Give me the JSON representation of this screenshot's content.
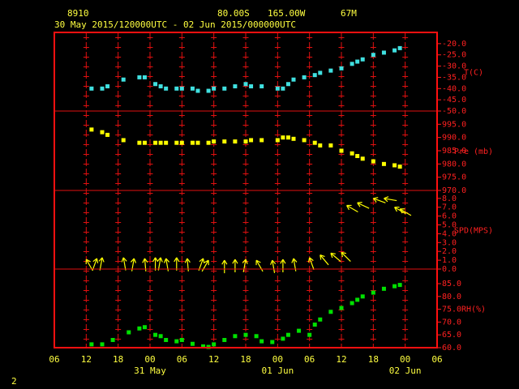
{
  "header": {
    "station": "8910",
    "lat": "80.00S",
    "lon": "165.00W",
    "elev": "67M",
    "period": "30 May 2015/120000UTC - 02 Jun 2015/000000UTC",
    "page": "2"
  },
  "chart_data": [
    {
      "type": "scatter",
      "ylabel": "T(C)",
      "color": "#40e0e0",
      "x": [
        7,
        9,
        10,
        13,
        16,
        17,
        19,
        20,
        21,
        23,
        24,
        26,
        27,
        29,
        30,
        32,
        34,
        36,
        37,
        39,
        42,
        43,
        44,
        45,
        47,
        49,
        50,
        52,
        54,
        56,
        57,
        58,
        60,
        62,
        64,
        65
      ],
      "values": [
        -40,
        -40,
        -39,
        -36,
        -35,
        -35,
        -38,
        -39,
        -40,
        -40,
        -40,
        -40,
        -41,
        -41,
        -40,
        -40,
        -39,
        -38,
        -39,
        -39,
        -40,
        -40,
        -38,
        -36,
        -35,
        -34,
        -33,
        -32,
        -31,
        -29,
        -28,
        -27,
        -25,
        -24,
        -23,
        -22
      ],
      "xlim": [
        0,
        72
      ],
      "ylim": [
        -50,
        -15
      ],
      "yticks": [
        {
          "value": -20,
          "label": "-20.0"
        },
        {
          "value": -25,
          "label": "-25.0"
        },
        {
          "value": -30,
          "label": "-30.0"
        },
        {
          "value": -35,
          "label": "-35.0"
        },
        {
          "value": -40,
          "label": "-40.0"
        },
        {
          "value": -45,
          "label": "-45.0"
        },
        {
          "value": -50,
          "label": "-50.0"
        }
      ]
    },
    {
      "type": "scatter",
      "ylabel": "Pre (mb)",
      "color": "#ffff00",
      "x": [
        7,
        9,
        10,
        13,
        16,
        17,
        19,
        20,
        21,
        23,
        24,
        26,
        27,
        29,
        30,
        32,
        34,
        36,
        37,
        39,
        42,
        43,
        44,
        45,
        47,
        49,
        50,
        52,
        54,
        56,
        57,
        58,
        60,
        62,
        64,
        65
      ],
      "values": [
        993,
        992,
        991,
        989,
        988,
        988,
        988,
        988,
        988,
        988,
        988,
        988,
        988,
        988,
        988.5,
        988.5,
        988.5,
        988.5,
        989,
        989,
        989,
        990,
        990,
        989.5,
        989,
        988,
        987,
        987,
        985,
        984,
        983,
        982,
        981,
        980,
        979.5,
        979
      ],
      "xlim": [
        0,
        72
      ],
      "ylim": [
        970,
        1000
      ],
      "yticks": [
        {
          "value": 995,
          "label": "995.0"
        },
        {
          "value": 990,
          "label": "990.0"
        },
        {
          "value": 985,
          "label": "985.0"
        },
        {
          "value": 980,
          "label": "980.0"
        },
        {
          "value": 975,
          "label": "975.0"
        },
        {
          "value": 970,
          "label": "970.0"
        }
      ]
    },
    {
      "type": "wind",
      "ylabel": "SPD(MPS)",
      "color": "#ffff00",
      "x": [
        6,
        8,
        9,
        13,
        15,
        17,
        19,
        20,
        21,
        23,
        25,
        28,
        29,
        32,
        34,
        36,
        38,
        41,
        43,
        45,
        48,
        50,
        52,
        54,
        55,
        57,
        60,
        62,
        64,
        65
      ],
      "values": [
        1.1,
        1.2,
        1.3,
        1.3,
        1.2,
        1.2,
        1.3,
        1.3,
        1.2,
        1.3,
        1.2,
        1.2,
        1.0,
        1.0,
        1.1,
        1.1,
        1.0,
        1.0,
        1.1,
        1.2,
        1.3,
        1.6,
        1.8,
        1.9,
        7.2,
        7.5,
        8.0,
        8.0,
        7.0,
        6.8
      ],
      "directions": [
        120,
        70,
        80,
        100,
        80,
        95,
        90,
        80,
        100,
        90,
        95,
        70,
        60,
        90,
        90,
        80,
        120,
        100,
        90,
        100,
        110,
        130,
        140,
        135,
        150,
        155,
        160,
        170,
        150,
        150
      ],
      "xlim": [
        0,
        72
      ],
      "ylim": [
        0,
        8.9
      ],
      "yticks": [
        {
          "value": 8,
          "label": "8.0"
        },
        {
          "value": 7,
          "label": "7.0"
        },
        {
          "value": 6,
          "label": "6.0"
        },
        {
          "value": 5,
          "label": "5.0"
        },
        {
          "value": 4,
          "label": "4.0"
        },
        {
          "value": 3,
          "label": "3.0"
        },
        {
          "value": 2,
          "label": "2.0"
        },
        {
          "value": 1,
          "label": "1.0"
        },
        {
          "value": 0,
          "label": "0.0"
        }
      ]
    },
    {
      "type": "scatter",
      "ylabel": "RH(%)",
      "color": "#00e000",
      "x": [
        7,
        9,
        11,
        14,
        16,
        17,
        19,
        20,
        21,
        23,
        24,
        26,
        28,
        29,
        30,
        32,
        34,
        36,
        38,
        39,
        41,
        43,
        44,
        46,
        48,
        49,
        50,
        52,
        54,
        56,
        57,
        58,
        60,
        62,
        64,
        65
      ],
      "values": [
        61.3,
        61.3,
        63,
        66,
        67.5,
        68,
        65,
        64.5,
        63,
        62.5,
        63,
        61.5,
        60.5,
        60.3,
        61.3,
        63,
        64.5,
        65,
        64.5,
        62.5,
        62.2,
        63.5,
        65,
        66.6,
        65,
        69,
        71,
        74,
        75.5,
        77.4,
        78.7,
        80,
        81.5,
        83,
        84,
        84.5
      ],
      "xlim": [
        0,
        72
      ],
      "ylim": [
        60,
        90.7
      ],
      "yticks": [
        {
          "value": 85,
          "label": "85.0"
        },
        {
          "value": 80,
          "label": "80.0"
        },
        {
          "value": 75,
          "label": "75.0"
        },
        {
          "value": 70,
          "label": "70.0"
        },
        {
          "value": 65,
          "label": "65.0"
        },
        {
          "value": 60,
          "label": "60.0"
        }
      ],
      "xticks": [
        {
          "value": 0,
          "label": "06"
        },
        {
          "value": 6,
          "label": "12"
        },
        {
          "value": 12,
          "label": "18"
        },
        {
          "value": 18,
          "label": "00"
        },
        {
          "value": 24,
          "label": "06"
        },
        {
          "value": 30,
          "label": "12"
        },
        {
          "value": 36,
          "label": "18"
        },
        {
          "value": 42,
          "label": "00"
        },
        {
          "value": 48,
          "label": "06"
        },
        {
          "value": 54,
          "label": "12"
        },
        {
          "value": 60,
          "label": "18"
        },
        {
          "value": 66,
          "label": "00"
        },
        {
          "value": 72,
          "label": "06"
        }
      ],
      "xdates": [
        {
          "value": 18,
          "label": "31 May"
        },
        {
          "value": 42,
          "label": "01 Jun"
        },
        {
          "value": 66,
          "label": "02 Jun"
        }
      ]
    }
  ]
}
